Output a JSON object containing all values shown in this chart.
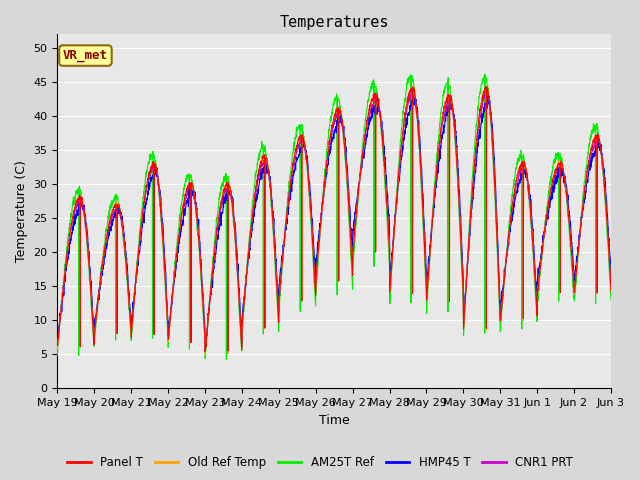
{
  "title": "Temperatures",
  "xlabel": "Time",
  "ylabel": "Temperature (C)",
  "ylim": [
    0,
    52
  ],
  "yticks": [
    0,
    5,
    10,
    15,
    20,
    25,
    30,
    35,
    40,
    45,
    50
  ],
  "xtick_labels": [
    "May 19",
    "May 20",
    "May 21",
    "May 22",
    "May 23",
    "May 24",
    "May 25",
    "May 26",
    "May 27",
    "May 28",
    "May 29",
    "May 30",
    "May 31",
    "Jun 1",
    "Jun 2",
    "Jun 3"
  ],
  "annotation_text": "VR_met",
  "annotation_bg": "#FFFF99",
  "annotation_border": "#8B6914",
  "annotation_text_color": "#8B0000",
  "colors": {
    "Panel T": "#FF0000",
    "Old Ref Temp": "#FFA500",
    "AM25T Ref": "#00EE00",
    "HMP45 T": "#0000FF",
    "CNR1 PRT": "#CC00CC"
  },
  "bg_color": "#E8E8E8",
  "grid_color": "#FFFFFF",
  "title_fontsize": 11,
  "axis_fontsize": 9,
  "tick_fontsize": 8,
  "n_days": 15,
  "pts_per_day": 144
}
